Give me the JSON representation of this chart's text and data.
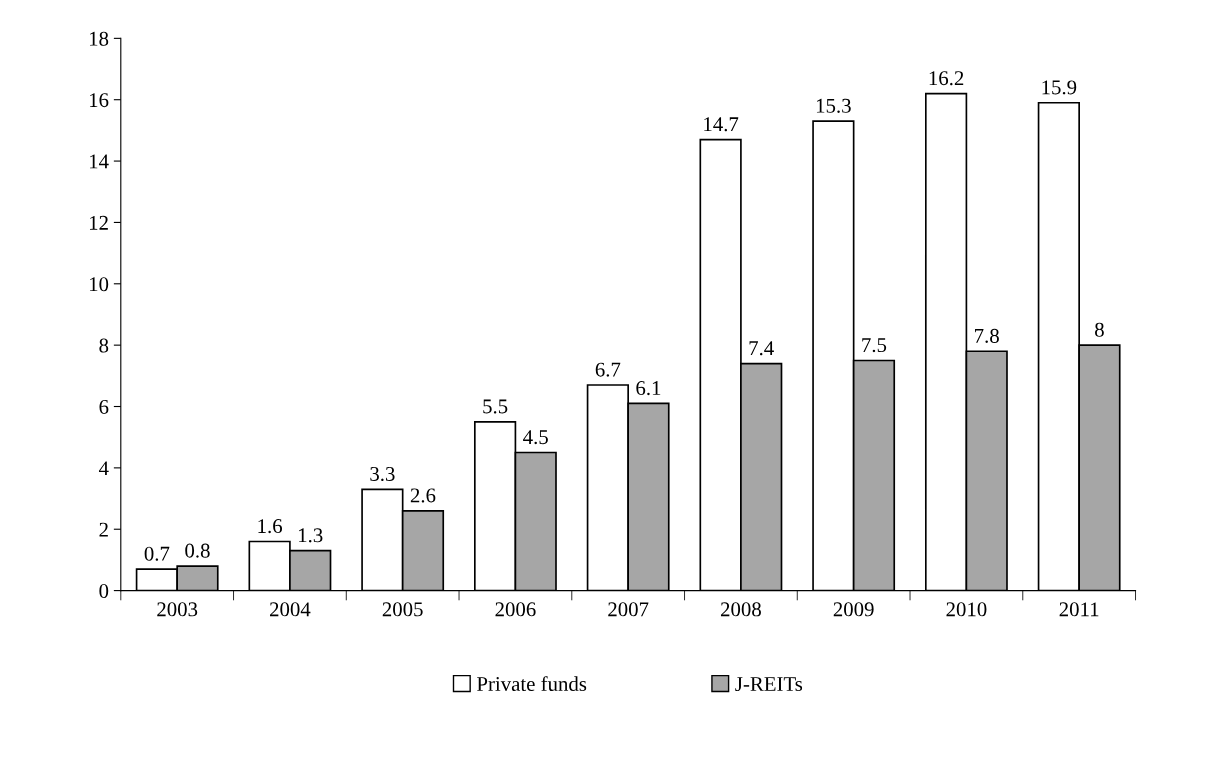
{
  "chart_data": {
    "type": "bar",
    "categories": [
      "2003",
      "2004",
      "2005",
      "2006",
      "2007",
      "2008",
      "2009",
      "2010",
      "2011"
    ],
    "series": [
      {
        "name": "Private funds",
        "color": "#ffffff",
        "values": [
          0.7,
          1.6,
          3.3,
          5.5,
          6.7,
          14.7,
          15.3,
          16.2,
          15.9
        ]
      },
      {
        "name": "J-REITs",
        "color": "#a6a6a6",
        "values": [
          0.8,
          1.3,
          2.6,
          4.5,
          6.1,
          7.4,
          7.5,
          7.8,
          8
        ]
      }
    ],
    "ylim": [
      0,
      18
    ],
    "yticks": [
      0,
      2,
      4,
      6,
      8,
      10,
      12,
      14,
      16,
      18
    ],
    "grid": false,
    "legend": "bottom",
    "data_labels": true
  }
}
